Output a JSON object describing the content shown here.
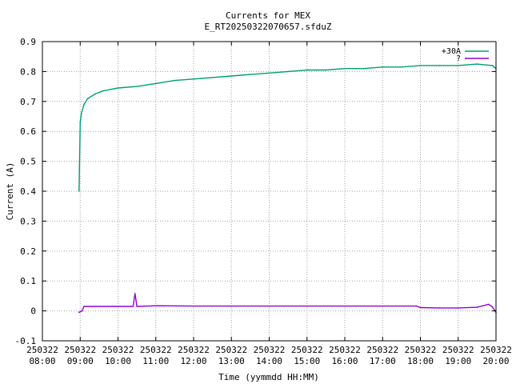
{
  "chart_data": {
    "type": "line",
    "title": "Currents for MEX",
    "subtitle": "E_RT20250322070657.sfduZ",
    "xlabel": "Time (yymmdd HH:MM)",
    "ylabel": "Current (A)",
    "ylim": [
      -0.1,
      0.9
    ],
    "yticks": [
      -0.1,
      0,
      0.1,
      0.2,
      0.3,
      0.4,
      0.5,
      0.6,
      0.7,
      0.8,
      0.9
    ],
    "yticklabels": [
      "-0.1",
      "0",
      "0.1",
      "0.2",
      "0.3",
      "0.4",
      "0.5",
      "0.6",
      "0.7",
      "0.8",
      "0.9"
    ],
    "xlim_hours": [
      8,
      20
    ],
    "xtick_hours": [
      8,
      9,
      10,
      11,
      12,
      13,
      14,
      15,
      16,
      17,
      18,
      19,
      20
    ],
    "xticklabels": [
      [
        "250322",
        "08:00"
      ],
      [
        "250322",
        "09:00"
      ],
      [
        "250322",
        "10:00"
      ],
      [
        "250322",
        "11:00"
      ],
      [
        "250322",
        "12:00"
      ],
      [
        "250322",
        "13:00"
      ],
      [
        "250322",
        "14:00"
      ],
      [
        "250322",
        "15:00"
      ],
      [
        "250322",
        "16:00"
      ],
      [
        "250322",
        "17:00"
      ],
      [
        "250322",
        "18:00"
      ],
      [
        "250322",
        "19:00"
      ],
      [
        "250322",
        "20:00"
      ]
    ],
    "grid": true,
    "legend_position": "top-right",
    "series": [
      {
        "name": "+30A",
        "color": "#009e73",
        "x_hours": [
          8.97,
          9.0,
          9.03,
          9.1,
          9.2,
          9.4,
          9.6,
          9.8,
          10.0,
          10.5,
          11.0,
          11.5,
          12.0,
          12.5,
          13.0,
          13.5,
          14.0,
          14.5,
          15.0,
          15.5,
          16.0,
          16.5,
          17.0,
          17.5,
          18.0,
          18.5,
          19.0,
          19.5,
          19.9,
          20.0
        ],
        "y": [
          0.4,
          0.63,
          0.66,
          0.69,
          0.71,
          0.725,
          0.735,
          0.74,
          0.745,
          0.75,
          0.76,
          0.77,
          0.775,
          0.78,
          0.785,
          0.79,
          0.795,
          0.8,
          0.805,
          0.805,
          0.81,
          0.81,
          0.815,
          0.815,
          0.82,
          0.82,
          0.82,
          0.825,
          0.82,
          0.81
        ]
      },
      {
        "name": "?",
        "color": "#9400d3",
        "x_hours": [
          8.97,
          9.05,
          9.1,
          10.0,
          10.4,
          10.45,
          10.5,
          11.0,
          12.0,
          13.0,
          14.0,
          15.0,
          16.0,
          17.0,
          17.9,
          18.0,
          18.5,
          19.0,
          19.5,
          19.8,
          19.9,
          20.0
        ],
        "y": [
          -0.005,
          0.0,
          0.015,
          0.015,
          0.015,
          0.058,
          0.015,
          0.017,
          0.016,
          0.016,
          0.016,
          0.016,
          0.016,
          0.016,
          0.016,
          0.011,
          0.01,
          0.01,
          0.012,
          0.022,
          0.014,
          -0.005
        ]
      }
    ]
  }
}
